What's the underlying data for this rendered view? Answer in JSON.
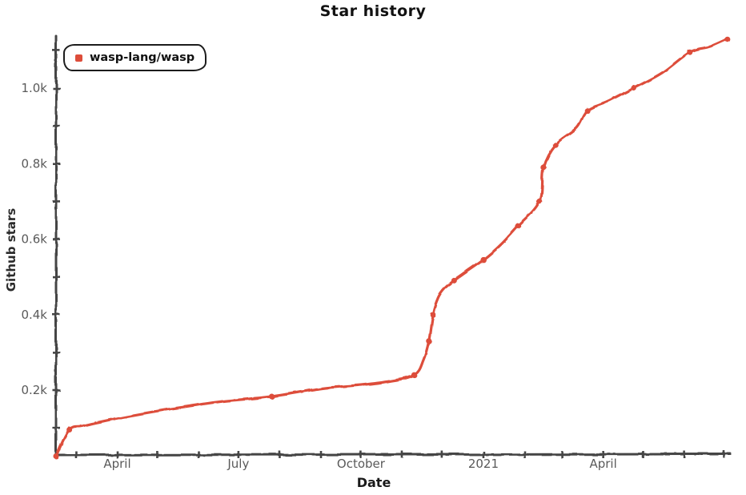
{
  "page": {
    "background": "#ffffff"
  },
  "chart": {
    "title": "Star history",
    "legend": {
      "label": "wasp-lang/wasp"
    },
    "x_axis": {
      "title": "Date"
    },
    "y_axis": {
      "title": "Github stars"
    }
  },
  "chart_data": {
    "type": "line",
    "style": "xkcd-hand-drawn",
    "title": "Star history",
    "xlabel": "Date",
    "ylabel": "Github stars",
    "legend_position": "top-left",
    "grid": false,
    "colors": {
      "line": "#dd4d3a",
      "axis": "#454545",
      "tick_label": "#5a5a5a",
      "text": "#111111"
    },
    "x_range": [
      "2020-02-15",
      "2021-07-04"
    ],
    "ylim": [
      0,
      1150
    ],
    "y_ticks": [
      {
        "stars": 100
      },
      {
        "stars": 200,
        "label": "0.2k"
      },
      {
        "stars": 300
      },
      {
        "stars": 400,
        "label": "0.4k"
      },
      {
        "stars": 500
      },
      {
        "stars": 600,
        "label": "0.6k"
      },
      {
        "stars": 700
      },
      {
        "stars": 800,
        "label": "0.8k"
      },
      {
        "stars": 900
      },
      {
        "stars": 1000,
        "label": "1.0k"
      },
      {
        "stars": 1100
      }
    ],
    "x_ticks": [
      {
        "date": "2020-03-01"
      },
      {
        "date": "2020-04-01",
        "label": "April"
      },
      {
        "date": "2020-05-01"
      },
      {
        "date": "2020-06-01"
      },
      {
        "date": "2020-07-01",
        "label": "July"
      },
      {
        "date": "2020-08-01"
      },
      {
        "date": "2020-09-01"
      },
      {
        "date": "2020-10-01",
        "label": "October"
      },
      {
        "date": "2020-11-01"
      },
      {
        "date": "2020-12-01"
      },
      {
        "date": "2021-01-01",
        "label": "2021"
      },
      {
        "date": "2021-02-01"
      },
      {
        "date": "2021-03-01"
      },
      {
        "date": "2021-04-01",
        "label": "April"
      },
      {
        "date": "2021-05-01"
      },
      {
        "date": "2021-06-01"
      },
      {
        "date": "2021-07-01"
      }
    ],
    "series": [
      {
        "name": "wasp-lang/wasp",
        "color": "#dd4d3a",
        "points": [
          {
            "date": "2020-02-15",
            "stars": 25,
            "marker": true
          },
          {
            "date": "2020-02-25",
            "stars": 95,
            "marker": true
          },
          {
            "date": "2020-03-06",
            "stars": 105,
            "marker": false
          },
          {
            "date": "2020-03-21",
            "stars": 117,
            "marker": false
          },
          {
            "date": "2020-04-08",
            "stars": 130,
            "marker": false
          },
          {
            "date": "2020-05-02",
            "stars": 145,
            "marker": false
          },
          {
            "date": "2020-05-26",
            "stars": 158,
            "marker": false
          },
          {
            "date": "2020-06-19",
            "stars": 170,
            "marker": false
          },
          {
            "date": "2020-07-26",
            "stars": 183,
            "marker": true
          },
          {
            "date": "2020-09-01",
            "stars": 204,
            "marker": false
          },
          {
            "date": "2020-09-29",
            "stars": 213,
            "marker": false
          },
          {
            "date": "2020-10-20",
            "stars": 222,
            "marker": false
          },
          {
            "date": "2020-11-10",
            "stars": 240,
            "marker": true
          },
          {
            "date": "2020-11-17",
            "stars": 280,
            "marker": false
          },
          {
            "date": "2020-11-21",
            "stars": 330,
            "marker": true
          },
          {
            "date": "2020-11-24",
            "stars": 400,
            "marker": true
          },
          {
            "date": "2020-11-28",
            "stars": 445,
            "marker": false
          },
          {
            "date": "2020-12-03",
            "stars": 470,
            "marker": false
          },
          {
            "date": "2020-12-10",
            "stars": 490,
            "marker": true
          },
          {
            "date": "2020-12-20",
            "stars": 515,
            "marker": false
          },
          {
            "date": "2021-01-01",
            "stars": 545,
            "marker": true
          },
          {
            "date": "2021-01-14",
            "stars": 585,
            "marker": false
          },
          {
            "date": "2021-01-27",
            "stars": 635,
            "marker": true
          },
          {
            "date": "2021-02-12",
            "stars": 700,
            "marker": true
          },
          {
            "date": "2021-02-15",
            "stars": 790,
            "marker": true
          },
          {
            "date": "2021-02-24",
            "stars": 850,
            "marker": true
          },
          {
            "date": "2021-03-12",
            "stars": 895,
            "marker": false
          },
          {
            "date": "2021-03-20",
            "stars": 940,
            "marker": true
          },
          {
            "date": "2021-04-05",
            "stars": 965,
            "marker": false
          },
          {
            "date": "2021-04-24",
            "stars": 1000,
            "marker": true
          },
          {
            "date": "2021-05-15",
            "stars": 1040,
            "marker": false
          },
          {
            "date": "2021-06-05",
            "stars": 1095,
            "marker": true
          },
          {
            "date": "2021-06-20",
            "stars": 1110,
            "marker": false
          },
          {
            "date": "2021-07-03",
            "stars": 1130,
            "marker": true
          }
        ]
      }
    ]
  }
}
